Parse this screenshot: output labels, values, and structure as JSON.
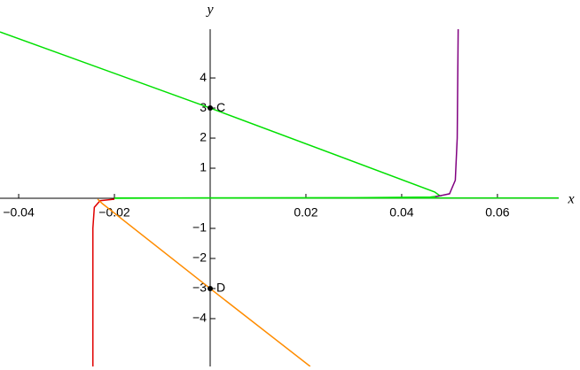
{
  "chart_data": {
    "type": "line",
    "xlabel": "x",
    "ylabel": "y",
    "xlim": [
      -0.0439,
      0.0728
    ],
    "ylim": [
      -5.59,
      5.62
    ],
    "xticks": [
      {
        "value": -0.04,
        "label": "−0.04"
      },
      {
        "value": -0.02,
        "label": "−0.02"
      },
      0.02,
      0.04,
      0.06
    ],
    "yticks": [
      {
        "value": -4,
        "label": "−4"
      },
      {
        "value": -3,
        "label": "−3"
      },
      {
        "value": -2,
        "label": "−2"
      },
      {
        "value": -1,
        "label": "−1"
      },
      1,
      2,
      3,
      4
    ],
    "series": [
      {
        "color": "#00e000",
        "x": [
          -0.0439,
          0,
          0.0469,
          0.048,
          0.046,
          0.03,
          0.0,
          -0.02
        ],
        "values": [
          5.53,
          3,
          0.21,
          0.08,
          0.04,
          0.02,
          0.01,
          0.0
        ]
      },
      {
        "color": "#00e000",
        "x": [
          -0.02,
          0.0728
        ],
        "values": [
          0.01,
          0.01
        ]
      },
      {
        "color": "#800080",
        "x": [
          0.047,
          0.05,
          0.0512,
          0.0516,
          0.0518
        ],
        "values": [
          0.05,
          0.15,
          0.6,
          2,
          5.62
        ]
      },
      {
        "color": "#e00000",
        "x": [
          -0.0245,
          -0.0245,
          -0.0242,
          -0.023,
          -0.02
        ],
        "values": [
          -5.59,
          -1,
          -0.3,
          -0.08,
          -0.03
        ]
      },
      {
        "color": "#ff8c00",
        "x": [
          -0.0235,
          -0.0225,
          0,
          0.0209
        ],
        "values": [
          -0.03,
          -0.18,
          -3,
          -5.59
        ]
      }
    ],
    "points": [
      {
        "label": "C",
        "x": 0,
        "y": 3
      },
      {
        "label": "D",
        "x": 0,
        "y": -3
      }
    ]
  }
}
